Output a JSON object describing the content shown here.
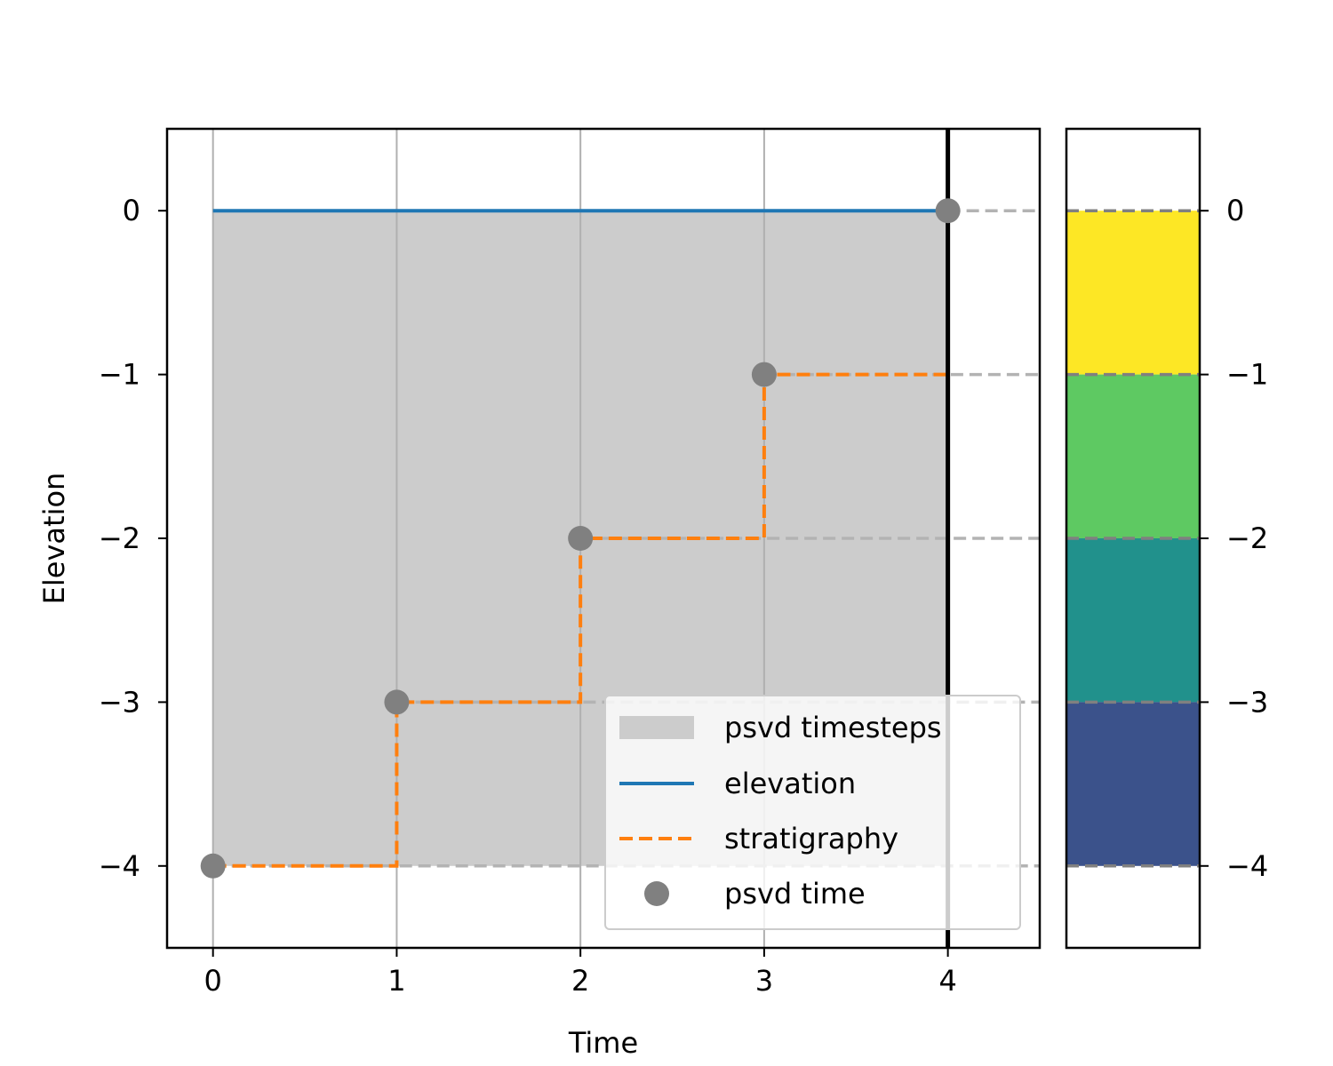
{
  "chart_data": [
    {
      "type": "line",
      "xlabel": "Time",
      "ylabel": "Elevation",
      "xlim": [
        -0.25,
        4.5
      ],
      "ylim": [
        -4.5,
        0.5
      ],
      "xticks": [
        0,
        1,
        2,
        3,
        4
      ],
      "yticks": [
        0,
        -1,
        -2,
        -3,
        -4
      ],
      "xtick_labels": [
        "0",
        "1",
        "2",
        "3",
        "4"
      ],
      "ytick_labels": [
        "0",
        "−1",
        "−2",
        "−3",
        "−4"
      ],
      "grid": "vertical",
      "current_time": 4,
      "fill": {
        "name": "psvd timesteps",
        "x": [
          0,
          4
        ],
        "y_low": -4,
        "y_high": 0,
        "color": "#cccccc"
      },
      "series": [
        {
          "name": "elevation",
          "style": "solid",
          "color": "#1f77b4",
          "x": [
            0,
            1,
            2,
            3,
            4
          ],
          "y": [
            0,
            0,
            0,
            0,
            0
          ]
        },
        {
          "name": "stratigraphy",
          "style": "dashed-step",
          "color": "#ff7f0e",
          "x": [
            0,
            1,
            1,
            2,
            2,
            3,
            3,
            4,
            4
          ],
          "y": [
            -4,
            -4,
            -3,
            -3,
            -2,
            -2,
            -1,
            -1,
            0
          ]
        },
        {
          "name": "psvd time",
          "style": "markers",
          "color": "#808080",
          "x": [
            0,
            1,
            2,
            3,
            4
          ],
          "y": [
            -4,
            -3,
            -2,
            -1,
            0
          ]
        }
      ],
      "horizon_lines": [
        0,
        -1,
        -2,
        -3,
        -4
      ],
      "legend": {
        "position": "lower-right",
        "entries": [
          "psvd timesteps",
          "elevation",
          "stratigraphy",
          "psvd time"
        ]
      }
    },
    {
      "type": "bar",
      "orientation": "stacked-column",
      "ylim": [
        -4.5,
        0.5
      ],
      "yticks": [
        0,
        -1,
        -2,
        -3,
        -4
      ],
      "ytick_labels": [
        "0",
        "−1",
        "−2",
        "−3",
        "−4"
      ],
      "yaxis_side": "right",
      "layers": [
        {
          "top": 0,
          "bottom": -1,
          "color": "#fde725"
        },
        {
          "top": -1,
          "bottom": -2,
          "color": "#5ec962"
        },
        {
          "top": -2,
          "bottom": -3,
          "color": "#21918c"
        },
        {
          "top": -3,
          "bottom": -4,
          "color": "#3b528b"
        }
      ]
    }
  ]
}
